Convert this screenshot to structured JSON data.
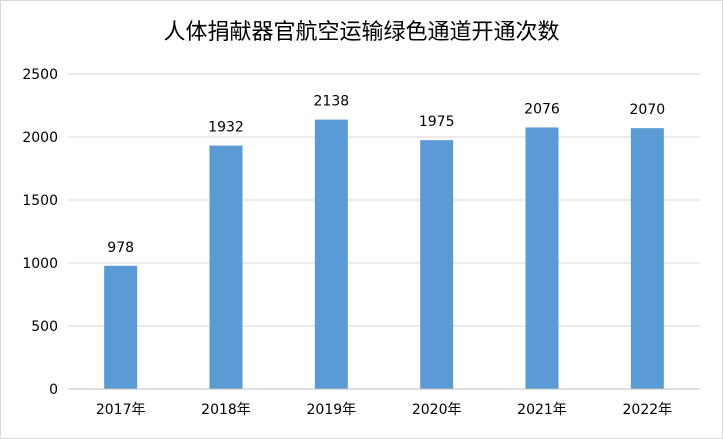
{
  "chart_data": {
    "type": "bar",
    "title": "人体捐献器官航空运输绿色通道开通次数",
    "categories": [
      "2017年",
      "2018年",
      "2019年",
      "2020年",
      "2021年",
      "2022年"
    ],
    "values": [
      978,
      1932,
      2138,
      1975,
      2076,
      2070
    ],
    "data_labels": [
      "978",
      "1932",
      "2138",
      "1975",
      "2076",
      "2070"
    ],
    "yticks": [
      "0",
      "500",
      "1000",
      "1500",
      "2000",
      "2500"
    ],
    "ytick_values": [
      0,
      500,
      1000,
      1500,
      2000,
      2500
    ],
    "ylim": [
      0,
      2500
    ],
    "xlabel": "",
    "ylabel": "",
    "grid": true,
    "legend": "none",
    "bar_color": "#5b9bd5",
    "grid_color": "#d9d9d9"
  }
}
